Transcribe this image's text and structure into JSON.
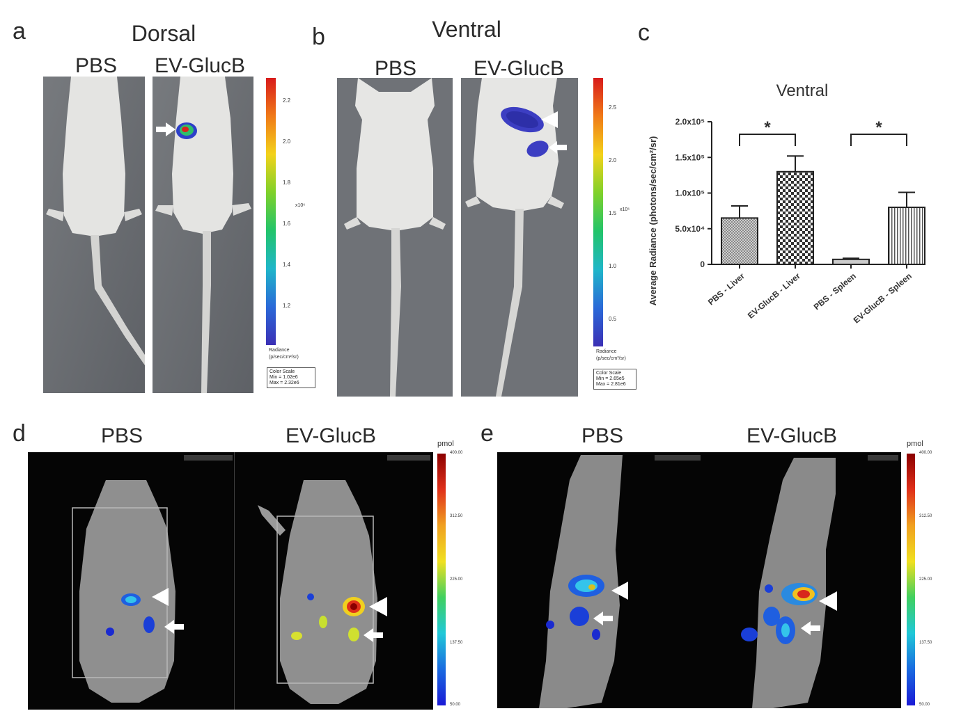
{
  "panels": {
    "a": {
      "label": "a",
      "title": "Dorsal",
      "conditions": [
        "PBS",
        "EV-GlucB"
      ],
      "scale": {
        "ticks": [
          "2.2",
          "2.0",
          "1.8",
          "1.6",
          "1.4",
          "1.2"
        ],
        "exponent": "x10⁶",
        "unit_label": "Radiance",
        "unit": "(p/sec/cm²/sr)",
        "box": [
          "Color Scale",
          "Min = 1.02e6",
          "Max = 2.32e6"
        ]
      }
    },
    "b": {
      "label": "b",
      "title": "Ventral",
      "conditions": [
        "PBS",
        "EV-GlucB"
      ],
      "scale": {
        "ticks": [
          "2.5",
          "2.0",
          "1.5",
          "1.0",
          "0.5"
        ],
        "exponent": "x10⁶",
        "unit_label": "Radiance",
        "unit": "(p/sec/cm²/sr)",
        "box": [
          "Color Scale",
          "Min = 2.65e5",
          "Max = 2.81e6"
        ]
      }
    },
    "c": {
      "label": "c"
    },
    "d": {
      "label": "d",
      "conditions": [
        "PBS",
        "EV-GlucB"
      ],
      "scale": {
        "unit": "pmol",
        "ticks": [
          "400.00",
          "312.50",
          "225.00",
          "137.50",
          "50.00"
        ]
      }
    },
    "e": {
      "label": "e",
      "conditions": [
        "PBS",
        "EV-GlucB"
      ],
      "scale": {
        "unit": "pmol",
        "ticks": [
          "400.00",
          "312.50",
          "225.00",
          "137.50",
          "50.00"
        ]
      }
    }
  },
  "chart_data": {
    "type": "bar",
    "title": "Ventral",
    "ylabel": "Average Radiance (photons/sec/cm²/sr)",
    "xlabel": "",
    "categories": [
      "PBS - Liver",
      "EV-GlucB - Liver",
      "PBS - Spleen",
      "EV-GlucB - Spleen"
    ],
    "values": [
      65000,
      130000,
      7000,
      80000
    ],
    "errors": [
      17000,
      22000,
      1500,
      21000
    ],
    "ylim": [
      0,
      200000
    ],
    "yticks": [
      0,
      50000,
      100000,
      150000,
      200000
    ],
    "ytick_labels": [
      "0",
      "5.0x10⁴",
      "1.0x10⁵",
      "1.5x10⁵",
      "2.0x10⁵"
    ],
    "significance": [
      {
        "between": [
          "PBS - Liver",
          "EV-GlucB - Liver"
        ],
        "label": "*"
      },
      {
        "between": [
          "PBS - Spleen",
          "EV-GlucB - Spleen"
        ],
        "label": "*"
      }
    ],
    "grid": false
  },
  "colors": {
    "heat_low": "#2a2fd0",
    "heat_mid": "#22c46a",
    "heat_high": "#d81b1b",
    "pmol_low": "#1a1ad6",
    "pmol_high": "#8b0000",
    "photo_bg": "#6d7075",
    "fmt_bg": "#050505"
  },
  "icons": [
    "arrow-icon",
    "arrowhead-icon"
  ]
}
